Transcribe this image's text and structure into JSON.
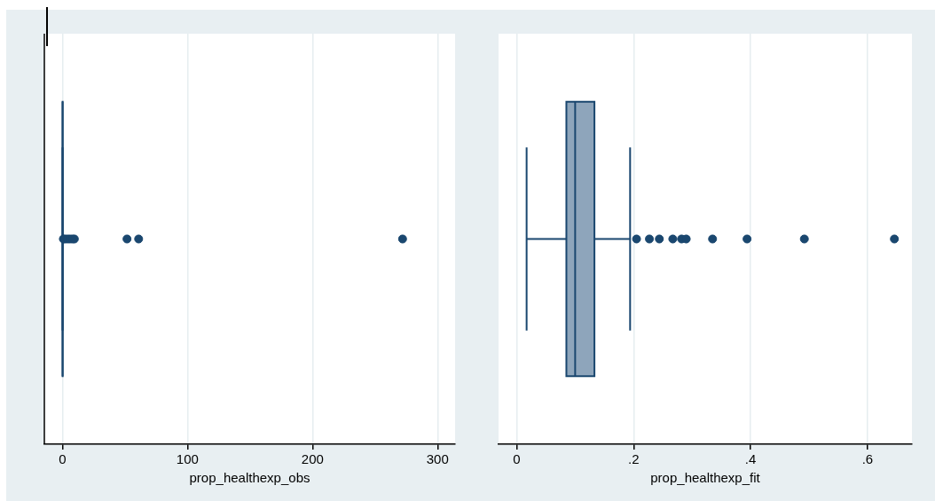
{
  "chart_data": [
    {
      "type": "box",
      "orientation": "horizontal",
      "categories": [
        null
      ],
      "color": "#8ea5bb",
      "xlabel": "prop_healthexp_obs",
      "xlim": [
        -14.5,
        314
      ],
      "xticks": [
        0,
        100,
        200,
        300
      ],
      "grid": "x",
      "legend": false,
      "boxes": [
        {
          "low": 0.017,
          "q1": 0.085,
          "median": 0.1,
          "q3": 0.133,
          "high": 0.194,
          "outliers": [
            0.7,
            2,
            4,
            6,
            8,
            9.5,
            51.6,
            60.9,
            272
          ]
        }
      ]
    },
    {
      "type": "box",
      "orientation": "horizontal",
      "categories": [
        null
      ],
      "color": "#8ea5bb",
      "xlabel": "prop_healthexp_fit",
      "xlim": [
        -0.031,
        0.676
      ],
      "xticks": [
        0,
        {
          "value": 0.2,
          "label": ".2"
        },
        {
          "value": 0.4,
          "label": ".4"
        },
        {
          "value": 0.6,
          "label": ".6"
        }
      ],
      "grid": "x",
      "legend": false,
      "boxes": [
        {
          "low": 0.017,
          "q1": 0.085,
          "median": 0.1,
          "q3": 0.133,
          "high": 0.194,
          "outliers": [
            0.205,
            0.227,
            0.244,
            0.267,
            0.282,
            0.29,
            0.335,
            0.394,
            0.492,
            0.646
          ]
        }
      ]
    }
  ]
}
